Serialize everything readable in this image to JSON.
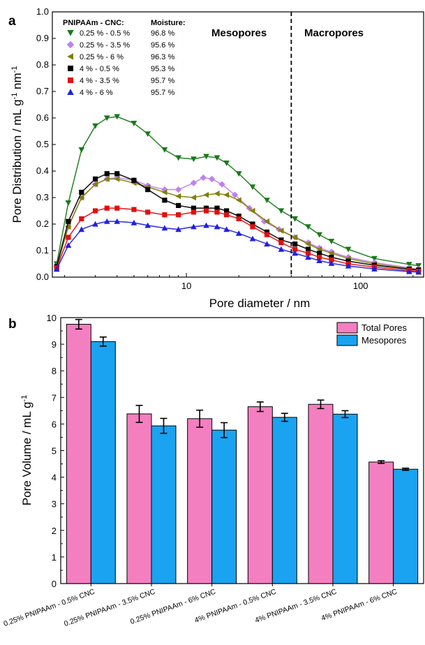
{
  "chart_data": [
    {
      "type": "scatter",
      "panel_label": "a",
      "xlabel": "Pore diameter / nm",
      "ylabel_parts": [
        "Pore Distribution / mL g",
        "-1",
        " nm",
        "-1"
      ],
      "xscale": "log",
      "xlim": [
        1.7,
        230
      ],
      "ylim": [
        0,
        1.0
      ],
      "yticks": [
        "0.0",
        "0.1",
        "0.2",
        "0.3",
        "0.4",
        "0.5",
        "0.6",
        "0.7",
        "0.8",
        "0.9",
        "1.0"
      ],
      "xticks": [
        {
          "value": 10,
          "label": "10"
        },
        {
          "value": 100,
          "label": "100"
        }
      ],
      "divider_x": 40,
      "regions": [
        "Mesopores",
        "Macropores"
      ],
      "legend_header": [
        "PNIPAAm - CNC:",
        "Moisture:"
      ],
      "series": [
        {
          "name": "0.25 % - 0.5 %",
          "moisture": "96.8 %",
          "color": "#1a7a1a",
          "marker": "triangle-down",
          "points": [
            [
              1.8,
              0.05
            ],
            [
              2.1,
              0.28
            ],
            [
              2.5,
              0.48
            ],
            [
              3.0,
              0.57
            ],
            [
              3.5,
              0.6
            ],
            [
              4.0,
              0.605
            ],
            [
              5.0,
              0.58
            ],
            [
              6.0,
              0.54
            ],
            [
              7.5,
              0.48
            ],
            [
              9.0,
              0.45
            ],
            [
              11,
              0.445
            ],
            [
              13,
              0.455
            ],
            [
              15,
              0.45
            ],
            [
              17,
              0.43
            ],
            [
              20,
              0.39
            ],
            [
              24,
              0.34
            ],
            [
              29,
              0.29
            ],
            [
              35,
              0.25
            ],
            [
              42,
              0.22
            ],
            [
              50,
              0.19
            ],
            [
              58,
              0.16
            ],
            [
              68,
              0.135
            ],
            [
              85,
              0.105
            ],
            [
              120,
              0.07
            ],
            [
              190,
              0.048
            ],
            [
              215,
              0.043
            ]
          ]
        },
        {
          "name": "0.25 % - 3.5 %",
          "moisture": "95.6 %",
          "color": "#c080f0",
          "marker": "diamond",
          "points": [
            [
              1.8,
              0.04
            ],
            [
              2.1,
              0.19
            ],
            [
              2.5,
              0.3
            ],
            [
              3.0,
              0.35
            ],
            [
              3.5,
              0.37
            ],
            [
              4.0,
              0.375
            ],
            [
              5.0,
              0.365
            ],
            [
              6.0,
              0.345
            ],
            [
              7.5,
              0.33
            ],
            [
              9.0,
              0.33
            ],
            [
              11,
              0.355
            ],
            [
              12.5,
              0.375
            ],
            [
              14,
              0.37
            ],
            [
              16,
              0.35
            ],
            [
              19,
              0.31
            ],
            [
              23,
              0.26
            ],
            [
              28,
              0.21
            ],
            [
              34,
              0.18
            ],
            [
              42,
              0.15
            ],
            [
              50,
              0.13
            ],
            [
              58,
              0.11
            ],
            [
              68,
              0.095
            ],
            [
              85,
              0.075
            ],
            [
              120,
              0.055
            ],
            [
              190,
              0.035
            ],
            [
              215,
              0.03
            ]
          ]
        },
        {
          "name": "0.25 % - 6 %",
          "moisture": "96.3 %",
          "color": "#808000",
          "marker": "triangle-left",
          "points": [
            [
              1.8,
              0.04
            ],
            [
              2.1,
              0.19
            ],
            [
              2.5,
              0.3
            ],
            [
              3.0,
              0.35
            ],
            [
              3.5,
              0.37
            ],
            [
              4.0,
              0.37
            ],
            [
              5.0,
              0.355
            ],
            [
              6.0,
              0.34
            ],
            [
              7.5,
              0.32
            ],
            [
              9.0,
              0.305
            ],
            [
              11,
              0.3
            ],
            [
              13,
              0.31
            ],
            [
              15,
              0.315
            ],
            [
              17,
              0.31
            ],
            [
              20,
              0.29
            ],
            [
              24,
              0.25
            ],
            [
              29,
              0.21
            ],
            [
              35,
              0.175
            ],
            [
              42,
              0.15
            ],
            [
              50,
              0.125
            ],
            [
              58,
              0.105
            ],
            [
              68,
              0.09
            ],
            [
              85,
              0.07
            ],
            [
              120,
              0.05
            ],
            [
              190,
              0.032
            ],
            [
              215,
              0.028
            ]
          ]
        },
        {
          "name": "4 % - 0.5 %",
          "moisture": "95.3 %",
          "color": "#000000",
          "marker": "square",
          "points": [
            [
              1.8,
              0.04
            ],
            [
              2.1,
              0.21
            ],
            [
              2.5,
              0.32
            ],
            [
              3.0,
              0.37
            ],
            [
              3.5,
              0.39
            ],
            [
              4.0,
              0.39
            ],
            [
              5.0,
              0.365
            ],
            [
              6.0,
              0.33
            ],
            [
              7.5,
              0.29
            ],
            [
              9.0,
              0.27
            ],
            [
              11,
              0.26
            ],
            [
              13,
              0.26
            ],
            [
              15,
              0.26
            ],
            [
              17,
              0.25
            ],
            [
              20,
              0.23
            ],
            [
              24,
              0.2
            ],
            [
              29,
              0.17
            ],
            [
              35,
              0.14
            ],
            [
              42,
              0.125
            ],
            [
              50,
              0.105
            ],
            [
              58,
              0.09
            ],
            [
              68,
              0.075
            ],
            [
              85,
              0.06
            ],
            [
              120,
              0.045
            ],
            [
              190,
              0.03
            ],
            [
              215,
              0.027
            ]
          ]
        },
        {
          "name": "4 % - 3.5 %",
          "moisture": "95.7 %",
          "color": "#e01010",
          "marker": "square",
          "points": [
            [
              1.8,
              0.035
            ],
            [
              2.1,
              0.15
            ],
            [
              2.5,
              0.22
            ],
            [
              3.0,
              0.25
            ],
            [
              3.5,
              0.26
            ],
            [
              4.0,
              0.26
            ],
            [
              5.0,
              0.255
            ],
            [
              6.0,
              0.245
            ],
            [
              7.5,
              0.235
            ],
            [
              9.0,
              0.235
            ],
            [
              11,
              0.245
            ],
            [
              13,
              0.25
            ],
            [
              15,
              0.245
            ],
            [
              17,
              0.235
            ],
            [
              20,
              0.22
            ],
            [
              24,
              0.19
            ],
            [
              29,
              0.16
            ],
            [
              35,
              0.13
            ],
            [
              42,
              0.105
            ],
            [
              50,
              0.09
            ],
            [
              58,
              0.075
            ],
            [
              68,
              0.065
            ],
            [
              85,
              0.05
            ],
            [
              120,
              0.038
            ],
            [
              190,
              0.025
            ],
            [
              215,
              0.022
            ]
          ]
        },
        {
          "name": "4 % - 6 %",
          "moisture": "95.7 %",
          "color": "#2020e0",
          "marker": "triangle-up",
          "points": [
            [
              1.8,
              0.03
            ],
            [
              2.1,
              0.12
            ],
            [
              2.5,
              0.18
            ],
            [
              3.0,
              0.2
            ],
            [
              3.5,
              0.21
            ],
            [
              4.0,
              0.21
            ],
            [
              5.0,
              0.205
            ],
            [
              6.0,
              0.195
            ],
            [
              7.5,
              0.185
            ],
            [
              9.0,
              0.18
            ],
            [
              11,
              0.19
            ],
            [
              13,
              0.195
            ],
            [
              15,
              0.19
            ],
            [
              17,
              0.18
            ],
            [
              20,
              0.165
            ],
            [
              24,
              0.145
            ],
            [
              29,
              0.125
            ],
            [
              35,
              0.105
            ],
            [
              42,
              0.09
            ],
            [
              50,
              0.075
            ],
            [
              58,
              0.062
            ],
            [
              68,
              0.052
            ],
            [
              85,
              0.042
            ],
            [
              120,
              0.031
            ],
            [
              190,
              0.021
            ],
            [
              215,
              0.019
            ]
          ]
        }
      ]
    },
    {
      "type": "bar",
      "panel_label": "b",
      "ylabel_parts": [
        "Pore Volume / mL g",
        "-1"
      ],
      "ylim": [
        0,
        10
      ],
      "yticks": [
        "0",
        "1",
        "2",
        "3",
        "4",
        "5",
        "6",
        "7",
        "8",
        "9",
        "10"
      ],
      "categories": [
        "0.25% PNIPAAm - 0.5% CNC",
        "0.25% PNIPAAm - 3.5% CNC",
        "0.25% PNIPAAm - 6% CNC",
        "4% PNIPAAm - 0.5% CNC",
        "4% PNIPAAm - 3.5% CNC",
        "4% PNIPAAm - 6% CNC"
      ],
      "series": [
        {
          "name": "Total Pores",
          "color": "#f47fc0",
          "values": [
            9.75,
            6.38,
            6.2,
            6.65,
            6.74,
            4.57
          ],
          "errors": [
            0.18,
            0.32,
            0.32,
            0.18,
            0.16,
            0.05
          ]
        },
        {
          "name": "Mesopores",
          "color": "#1aa3f0",
          "values": [
            9.1,
            5.93,
            5.77,
            6.25,
            6.37,
            4.3
          ],
          "errors": [
            0.17,
            0.28,
            0.28,
            0.15,
            0.13,
            0.04
          ]
        }
      ]
    }
  ]
}
